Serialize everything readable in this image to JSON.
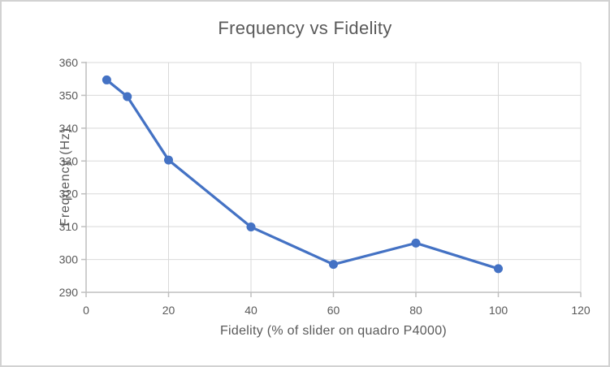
{
  "chart_data": {
    "type": "line",
    "title": "Frequency vs Fidelity",
    "xlabel": "Fidelity (% of slider on quadro P4000)",
    "ylabel": "Frequency (Hz)",
    "x": [
      5,
      10,
      20,
      40,
      60,
      80,
      100
    ],
    "y": [
      354.7,
      349.6,
      330.3,
      309.9,
      298.5,
      305.0,
      297.2
    ],
    "xlim": [
      0,
      120
    ],
    "ylim": [
      290,
      360
    ],
    "xticks": [
      0,
      20,
      40,
      60,
      80,
      100,
      120
    ],
    "yticks": [
      290,
      300,
      310,
      320,
      330,
      340,
      350,
      360
    ],
    "grid": true,
    "legend": false,
    "marker": "circle",
    "colors": {
      "line": "#4472c4",
      "marker": "#4472c4",
      "grid": "#d9d9d9",
      "axis": "#bfbfbf",
      "text": "#595959",
      "title": "#595959"
    }
  }
}
